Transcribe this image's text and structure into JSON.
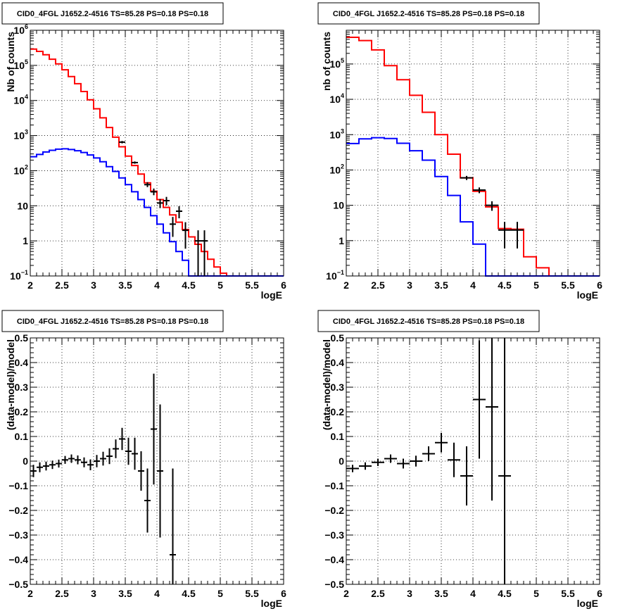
{
  "colors": {
    "data": "#000000",
    "total_model": "#ff0000",
    "source_model": "#0000ff",
    "grid": "#000000",
    "frame": "#000000"
  },
  "chart_data": [
    {
      "type": "line",
      "title": "CID0_4FGL J1652.2-4516 TS=85.28 PS=0.18 PS=0.18",
      "xlabel": "logE",
      "ylabel": "Nb of counts",
      "xlim": [
        2,
        6
      ],
      "ylim": [
        0.1,
        1000000
      ],
      "yscale": "log",
      "grid": true,
      "x_ticks": [
        "2",
        "2.5",
        "3",
        "3.5",
        "4",
        "4.5",
        "5",
        "5.5",
        "6"
      ],
      "y_ticks": [
        {
          "value": 0.1,
          "base": "10",
          "exp": "−1"
        },
        {
          "value": 1,
          "base": "1",
          "exp": ""
        },
        {
          "value": 10,
          "base": "10",
          "exp": ""
        },
        {
          "value": 100,
          "base": "10",
          "exp": "2"
        },
        {
          "value": 1000,
          "base": "10",
          "exp": "3"
        },
        {
          "value": 10000,
          "base": "10",
          "exp": "4"
        },
        {
          "value": 100000,
          "base": "10",
          "exp": "5"
        },
        {
          "value": 1000000,
          "base": "10",
          "exp": "6"
        }
      ],
      "bin_edges": [
        2.0,
        2.1,
        2.2,
        2.3,
        2.4,
        2.5,
        2.6,
        2.7,
        2.8,
        2.9,
        3.0,
        3.1,
        3.2,
        3.3,
        3.4,
        3.5,
        3.6,
        3.7,
        3.8,
        3.9,
        4.0,
        4.1,
        4.2,
        4.3,
        4.4,
        4.5,
        4.6,
        4.7,
        4.8,
        4.9,
        5.0,
        5.1,
        5.2,
        5.3,
        5.4,
        5.5,
        5.6,
        5.7,
        5.8,
        5.9,
        6.0
      ],
      "series": [
        {
          "role": "total_model",
          "draw": "step",
          "values": [
            290000,
            250000,
            200000,
            150000,
            110000,
            75000,
            48000,
            30000,
            18000,
            10500,
            5800,
            3200,
            1700,
            900,
            480,
            260,
            140,
            80,
            45,
            26,
            15,
            9,
            5.5,
            3.4,
            2.1,
            1.3,
            0.8,
            0.5,
            0.3,
            0.18,
            0.12,
            0.1,
            0.1,
            0.1,
            0.1,
            0.1,
            0.1,
            0.1,
            0.1,
            0.1
          ]
        },
        {
          "role": "source_model",
          "draw": "step",
          "values": [
            250,
            290,
            340,
            380,
            410,
            420,
            400,
            370,
            330,
            280,
            230,
            180,
            130,
            95,
            62,
            40,
            25,
            15,
            9,
            5.2,
            3,
            1.7,
            0.95,
            0.5,
            0.28,
            0.1,
            0.1,
            0.1,
            0.1,
            0.1,
            0.1,
            0.1,
            0.1,
            0.1,
            0.1,
            0.1,
            0.1,
            0.1,
            0.1,
            0.1
          ]
        },
        {
          "role": "data",
          "draw": "errorbar",
          "points": [
            {
              "x": 3.45,
              "y": 650,
              "lo": 600,
              "hi": 700
            },
            {
              "x": 3.65,
              "y": 170,
              "lo": 158,
              "hi": 183
            },
            {
              "x": 3.85,
              "y": 40,
              "lo": 34,
              "hi": 47
            },
            {
              "x": 3.95,
              "y": 25,
              "lo": 20,
              "hi": 31
            },
            {
              "x": 4.05,
              "y": 12,
              "lo": 8.6,
              "hi": 15.6
            },
            {
              "x": 4.15,
              "y": 14,
              "lo": 10.3,
              "hi": 17.9
            },
            {
              "x": 4.25,
              "y": 3,
              "lo": 1.3,
              "hi": 4.8
            },
            {
              "x": 4.35,
              "y": 7,
              "lo": 4.4,
              "hi": 9.7
            },
            {
              "x": 4.45,
              "y": 2,
              "lo": 0.6,
              "hi": 3.4
            },
            {
              "x": 4.65,
              "y": 1,
              "lo": 0.1,
              "hi": 2.0
            },
            {
              "x": 4.75,
              "y": 1,
              "lo": 0.1,
              "hi": 2.0
            }
          ]
        }
      ]
    },
    {
      "type": "line",
      "title": "CID0_4FGL J1652.2-4516 TS=85.28 PS=0.18 PS=0.18",
      "xlabel": "logE",
      "ylabel": "nb of counts",
      "xlim": [
        2,
        6
      ],
      "ylim": [
        0.1,
        900000
      ],
      "yscale": "log",
      "grid": true,
      "x_ticks": [
        "2",
        "2.5",
        "3",
        "3.5",
        "4",
        "4.5",
        "5",
        "5.5",
        "6"
      ],
      "y_ticks": [
        {
          "value": 0.1,
          "base": "10",
          "exp": "−1"
        },
        {
          "value": 1,
          "base": "1",
          "exp": ""
        },
        {
          "value": 10,
          "base": "10",
          "exp": ""
        },
        {
          "value": 100,
          "base": "10",
          "exp": "2"
        },
        {
          "value": 1000,
          "base": "10",
          "exp": "3"
        },
        {
          "value": 10000,
          "base": "10",
          "exp": "4"
        },
        {
          "value": 100000,
          "base": "10",
          "exp": "5"
        }
      ],
      "bin_edges": [
        2.0,
        2.2,
        2.4,
        2.6,
        2.8,
        3.0,
        3.2,
        3.4,
        3.6,
        3.8,
        4.0,
        4.2,
        4.4,
        4.6,
        4.8,
        5.0,
        5.2,
        5.4,
        5.6,
        5.8,
        6.0
      ],
      "series": [
        {
          "role": "total_model",
          "draw": "step",
          "values": [
            570000,
            460000,
            250000,
            90000,
            36000,
            13000,
            4300,
            1000,
            280,
            60,
            25,
            9,
            2.2,
            2.1,
            0.35,
            0.17,
            0.1,
            0.1,
            0.1,
            0.1
          ]
        },
        {
          "role": "source_model",
          "draw": "step",
          "values": [
            560,
            760,
            820,
            780,
            570,
            350,
            190,
            65,
            19,
            3.4,
            0.8,
            0.1,
            0.1,
            0.1,
            0.1,
            0.1,
            0.1,
            0.1,
            0.1,
            0.1
          ]
        },
        {
          "role": "data",
          "draw": "errorbar",
          "points": [
            {
              "x": 3.9,
              "y": 60,
              "lo": 52,
              "hi": 68
            },
            {
              "x": 4.1,
              "y": 27,
              "lo": 22,
              "hi": 32
            },
            {
              "x": 4.3,
              "y": 10,
              "lo": 7,
              "hi": 13
            },
            {
              "x": 4.5,
              "y": 2,
              "lo": 0.6,
              "hi": 3.4
            },
            {
              "x": 4.7,
              "y": 2,
              "lo": 0.6,
              "hi": 3.4
            }
          ]
        }
      ]
    },
    {
      "type": "scatter",
      "title": "CID0_4FGL J1652.2-4516 TS=85.28 PS=0.18 PS=0.18",
      "xlabel": "logE",
      "ylabel": "(data-model)/model",
      "xlim": [
        2,
        6
      ],
      "ylim": [
        -0.5,
        0.5
      ],
      "grid": true,
      "x_ticks": [
        "2",
        "2.5",
        "3",
        "3.5",
        "4",
        "4.5",
        "5",
        "5.5",
        "6"
      ],
      "y_ticks": [
        {
          "value": -0.5,
          "label": "−0.5"
        },
        {
          "value": -0.4,
          "label": "−0.4"
        },
        {
          "value": -0.3,
          "label": "−0.3"
        },
        {
          "value": -0.2,
          "label": "−0.2"
        },
        {
          "value": -0.1,
          "label": "−0.1"
        },
        {
          "value": 0,
          "label": "0"
        },
        {
          "value": 0.1,
          "label": "0.1"
        },
        {
          "value": 0.2,
          "label": "0.2"
        },
        {
          "value": 0.3,
          "label": "0.3"
        },
        {
          "value": 0.4,
          "label": "0.4"
        },
        {
          "value": 0.5,
          "label": "0.5"
        }
      ],
      "xerr": 0.05,
      "points": [
        {
          "x": 2.05,
          "y": -0.04,
          "err": 0.025
        },
        {
          "x": 2.15,
          "y": -0.025,
          "err": 0.02
        },
        {
          "x": 2.25,
          "y": -0.02,
          "err": 0.018
        },
        {
          "x": 2.35,
          "y": -0.015,
          "err": 0.017
        },
        {
          "x": 2.45,
          "y": -0.01,
          "err": 0.016
        },
        {
          "x": 2.55,
          "y": 0.005,
          "err": 0.016
        },
        {
          "x": 2.65,
          "y": 0.01,
          "err": 0.017
        },
        {
          "x": 2.75,
          "y": 0.005,
          "err": 0.018
        },
        {
          "x": 2.85,
          "y": -0.005,
          "err": 0.02
        },
        {
          "x": 2.95,
          "y": -0.015,
          "err": 0.022
        },
        {
          "x": 3.05,
          "y": 0.0,
          "err": 0.025
        },
        {
          "x": 3.15,
          "y": 0.01,
          "err": 0.028
        },
        {
          "x": 3.25,
          "y": 0.02,
          "err": 0.032
        },
        {
          "x": 3.35,
          "y": 0.05,
          "err": 0.038
        },
        {
          "x": 3.45,
          "y": 0.09,
          "err": 0.045
        },
        {
          "x": 3.55,
          "y": 0.04,
          "err": 0.055
        },
        {
          "x": 3.65,
          "y": 0.03,
          "err": 0.065
        },
        {
          "x": 3.75,
          "y": -0.04,
          "err": 0.08
        },
        {
          "x": 3.85,
          "y": -0.16,
          "err": 0.13
        },
        {
          "x": 3.95,
          "y": 0.13,
          "err": 0.225
        },
        {
          "x": 4.05,
          "y": -0.04,
          "err": 0.27
        },
        {
          "x": 4.25,
          "y": -0.38,
          "err": 0.35
        }
      ]
    },
    {
      "type": "scatter",
      "title": "CID0_4FGL J1652.2-4516 TS=85.28 PS=0.18 PS=0.18",
      "xlabel": "logE",
      "ylabel": "(data-model)/model",
      "xlim": [
        2,
        6
      ],
      "ylim": [
        -0.5,
        0.5
      ],
      "grid": true,
      "x_ticks": [
        "2",
        "2.5",
        "3",
        "3.5",
        "4",
        "4.5",
        "5",
        "5.5",
        "6"
      ],
      "y_ticks": [
        {
          "value": -0.5,
          "label": "−0.5"
        },
        {
          "value": -0.4,
          "label": "−0.4"
        },
        {
          "value": -0.3,
          "label": "−0.3"
        },
        {
          "value": -0.2,
          "label": "−0.2"
        },
        {
          "value": -0.1,
          "label": "−0.1"
        },
        {
          "value": 0,
          "label": "0"
        },
        {
          "value": 0.1,
          "label": "0.1"
        },
        {
          "value": 0.2,
          "label": "0.2"
        },
        {
          "value": 0.3,
          "label": "0.3"
        },
        {
          "value": 0.4,
          "label": "0.4"
        },
        {
          "value": 0.5,
          "label": "0.5"
        }
      ],
      "xerr": 0.1,
      "points": [
        {
          "x": 2.1,
          "y": -0.03,
          "err": 0.015
        },
        {
          "x": 2.3,
          "y": -0.02,
          "err": 0.015
        },
        {
          "x": 2.5,
          "y": -0.005,
          "err": 0.015
        },
        {
          "x": 2.7,
          "y": 0.01,
          "err": 0.017
        },
        {
          "x": 2.9,
          "y": -0.01,
          "err": 0.02
        },
        {
          "x": 3.1,
          "y": 0.0,
          "err": 0.022
        },
        {
          "x": 3.3,
          "y": 0.03,
          "err": 0.03
        },
        {
          "x": 3.5,
          "y": 0.075,
          "err": 0.04
        },
        {
          "x": 3.7,
          "y": 0.005,
          "err": 0.07
        },
        {
          "x": 3.9,
          "y": -0.06,
          "err": 0.12
        },
        {
          "x": 4.1,
          "y": 0.25,
          "err": 0.24
        },
        {
          "x": 4.3,
          "y": 0.22,
          "err": 0.38
        },
        {
          "x": 4.5,
          "y": -0.06,
          "err": 0.62
        }
      ]
    }
  ]
}
